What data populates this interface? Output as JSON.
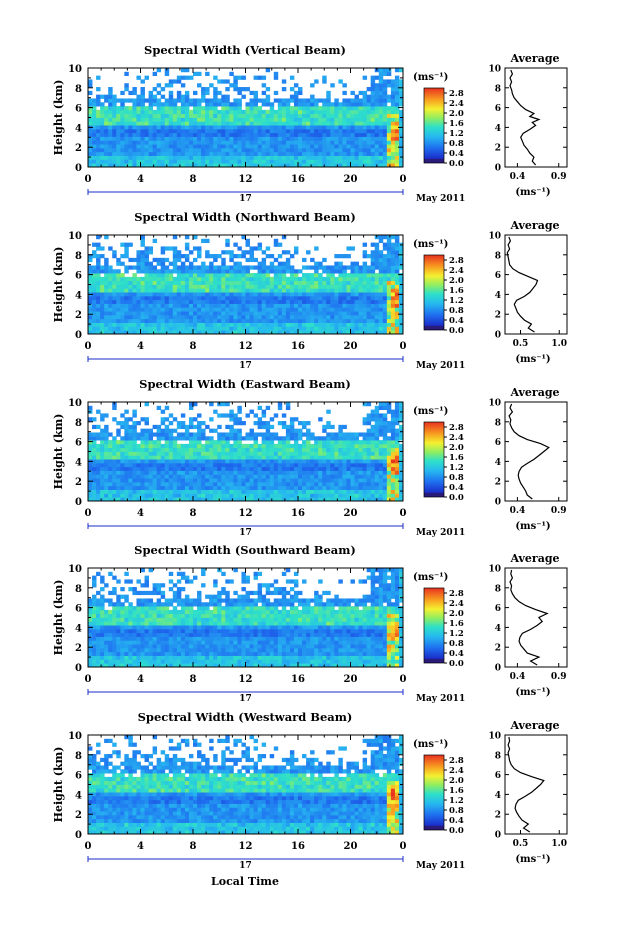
{
  "chart_data": [
    {
      "type": "heatmap",
      "title": "Spectral Width (Vertical Beam)",
      "ylabel": "Height (km)",
      "xlabel": "",
      "x_ticks": [
        "0",
        "4",
        "8",
        "12",
        "16",
        "20",
        "0"
      ],
      "y_ticks": [
        "0",
        "2",
        "4",
        "6",
        "8",
        "10"
      ],
      "xlim": [
        0,
        24
      ],
      "ylim": [
        0,
        10
      ],
      "date_label": "17",
      "month_label": "May 2011",
      "colorbar": {
        "unit": "(ms⁻¹)",
        "ticks": [
          "0.0",
          "0.4",
          "0.8",
          "1.2",
          "1.6",
          "2.0",
          "2.4",
          "2.8"
        ],
        "range": [
          0,
          3.0
        ]
      },
      "average": {
        "title": "Average",
        "xlabel": "(ms⁻¹)",
        "x_ticks": [
          "0.4",
          "0.9"
        ],
        "xlim": [
          0.25,
          1.0
        ],
        "y_ticks": [
          "0",
          "2",
          "4",
          "6",
          "8",
          "10"
        ],
        "profile": [
          [
            0.62,
            0.2
          ],
          [
            0.58,
            0.6
          ],
          [
            0.6,
            1.0
          ],
          [
            0.55,
            1.4
          ],
          [
            0.52,
            1.8
          ],
          [
            0.48,
            2.2
          ],
          [
            0.46,
            2.6
          ],
          [
            0.44,
            3.0
          ],
          [
            0.47,
            3.4
          ],
          [
            0.55,
            3.8
          ],
          [
            0.62,
            4.2
          ],
          [
            0.58,
            4.5
          ],
          [
            0.66,
            4.8
          ],
          [
            0.55,
            5.1
          ],
          [
            0.6,
            5.4
          ],
          [
            0.5,
            5.8
          ],
          [
            0.44,
            6.2
          ],
          [
            0.4,
            6.6
          ],
          [
            0.36,
            7.0
          ],
          [
            0.34,
            7.4
          ],
          [
            0.33,
            7.8
          ],
          [
            0.31,
            8.2
          ],
          [
            0.33,
            8.6
          ],
          [
            0.31,
            9.0
          ],
          [
            0.34,
            9.4
          ],
          [
            0.32,
            9.8
          ]
        ]
      }
    },
    {
      "type": "heatmap",
      "title": "Spectral Width (Northward Beam)",
      "ylabel": "Height (km)",
      "xlabel": "",
      "x_ticks": [
        "0",
        "4",
        "8",
        "12",
        "16",
        "20",
        "0"
      ],
      "y_ticks": [
        "0",
        "2",
        "4",
        "6",
        "8",
        "10"
      ],
      "xlim": [
        0,
        24
      ],
      "ylim": [
        0,
        10
      ],
      "date_label": "17",
      "month_label": "May 2011",
      "colorbar": {
        "unit": "(ms⁻¹)",
        "ticks": [
          "0.0",
          "0.4",
          "0.8",
          "1.2",
          "1.6",
          "2.0",
          "2.4",
          "2.8"
        ],
        "range": [
          0,
          3.0
        ]
      },
      "average": {
        "title": "Average",
        "xlabel": "(ms⁻¹)",
        "x_ticks": [
          "0.5",
          "1.0"
        ],
        "xlim": [
          0.3,
          1.1
        ],
        "y_ticks": [
          "0",
          "2",
          "4",
          "6",
          "8",
          "10"
        ],
        "profile": [
          [
            0.68,
            0.2
          ],
          [
            0.6,
            0.6
          ],
          [
            0.64,
            1.0
          ],
          [
            0.55,
            1.4
          ],
          [
            0.5,
            1.8
          ],
          [
            0.46,
            2.2
          ],
          [
            0.44,
            2.6
          ],
          [
            0.42,
            3.0
          ],
          [
            0.45,
            3.4
          ],
          [
            0.55,
            3.8
          ],
          [
            0.62,
            4.2
          ],
          [
            0.66,
            4.6
          ],
          [
            0.7,
            5.0
          ],
          [
            0.72,
            5.4
          ],
          [
            0.6,
            5.8
          ],
          [
            0.48,
            6.2
          ],
          [
            0.4,
            6.6
          ],
          [
            0.36,
            7.0
          ],
          [
            0.35,
            7.4
          ],
          [
            0.34,
            7.8
          ],
          [
            0.33,
            8.2
          ],
          [
            0.36,
            8.6
          ],
          [
            0.34,
            9.0
          ],
          [
            0.37,
            9.4
          ],
          [
            0.35,
            9.8
          ]
        ]
      }
    },
    {
      "type": "heatmap",
      "title": "Spectral Width (Eastward Beam)",
      "ylabel": "Height (km)",
      "xlabel": "",
      "x_ticks": [
        "0",
        "4",
        "8",
        "12",
        "16",
        "20",
        "0"
      ],
      "y_ticks": [
        "0",
        "2",
        "4",
        "6",
        "8",
        "10"
      ],
      "xlim": [
        0,
        24
      ],
      "ylim": [
        0,
        10
      ],
      "date_label": "17",
      "month_label": "May 2011",
      "colorbar": {
        "unit": "(ms⁻¹)",
        "ticks": [
          "0.0",
          "0.4",
          "0.8",
          "1.2",
          "1.6",
          "2.0",
          "2.4",
          "2.8"
        ],
        "range": [
          0,
          3.0
        ]
      },
      "average": {
        "title": "Average",
        "xlabel": "(ms⁻¹)",
        "x_ticks": [
          "0.4",
          "0.9"
        ],
        "xlim": [
          0.25,
          1.0
        ],
        "y_ticks": [
          "0",
          "2",
          "4",
          "6",
          "8",
          "10"
        ],
        "profile": [
          [
            0.58,
            0.2
          ],
          [
            0.52,
            0.6
          ],
          [
            0.5,
            1.0
          ],
          [
            0.47,
            1.4
          ],
          [
            0.44,
            1.8
          ],
          [
            0.42,
            2.2
          ],
          [
            0.41,
            2.6
          ],
          [
            0.42,
            3.0
          ],
          [
            0.45,
            3.4
          ],
          [
            0.52,
            3.8
          ],
          [
            0.6,
            4.2
          ],
          [
            0.66,
            4.6
          ],
          [
            0.72,
            5.0
          ],
          [
            0.78,
            5.4
          ],
          [
            0.68,
            5.8
          ],
          [
            0.52,
            6.2
          ],
          [
            0.42,
            6.6
          ],
          [
            0.36,
            7.0
          ],
          [
            0.33,
            7.4
          ],
          [
            0.31,
            7.8
          ],
          [
            0.32,
            8.2
          ],
          [
            0.3,
            8.6
          ],
          [
            0.34,
            9.0
          ],
          [
            0.31,
            9.4
          ],
          [
            0.33,
            9.8
          ]
        ]
      }
    },
    {
      "type": "heatmap",
      "title": "Spectral Width (Southward Beam)",
      "ylabel": "Height (km)",
      "xlabel": "",
      "x_ticks": [
        "0",
        "4",
        "8",
        "12",
        "16",
        "20",
        "0"
      ],
      "y_ticks": [
        "0",
        "2",
        "4",
        "6",
        "8",
        "10"
      ],
      "xlim": [
        0,
        24
      ],
      "ylim": [
        0,
        10
      ],
      "date_label": "17",
      "month_label": "May 2011",
      "colorbar": {
        "unit": "(ms⁻¹)",
        "ticks": [
          "0.0",
          "0.4",
          "0.8",
          "1.2",
          "1.6",
          "2.0",
          "2.4",
          "2.8"
        ],
        "range": [
          0,
          3.0
        ]
      },
      "average": {
        "title": "Average",
        "xlabel": "(ms⁻¹)",
        "x_ticks": [
          "0.4",
          "0.9"
        ],
        "xlim": [
          0.25,
          1.0
        ],
        "y_ticks": [
          "0",
          "2",
          "4",
          "6",
          "8",
          "10"
        ],
        "profile": [
          [
            0.64,
            0.2
          ],
          [
            0.56,
            0.6
          ],
          [
            0.66,
            1.0
          ],
          [
            0.52,
            1.4
          ],
          [
            0.48,
            1.8
          ],
          [
            0.44,
            2.2
          ],
          [
            0.42,
            2.6
          ],
          [
            0.43,
            3.0
          ],
          [
            0.46,
            3.4
          ],
          [
            0.56,
            3.8
          ],
          [
            0.64,
            4.2
          ],
          [
            0.7,
            4.6
          ],
          [
            0.66,
            5.0
          ],
          [
            0.76,
            5.4
          ],
          [
            0.62,
            5.8
          ],
          [
            0.5,
            6.2
          ],
          [
            0.42,
            6.6
          ],
          [
            0.37,
            7.0
          ],
          [
            0.34,
            7.4
          ],
          [
            0.32,
            7.8
          ],
          [
            0.33,
            8.2
          ],
          [
            0.31,
            8.6
          ],
          [
            0.34,
            9.0
          ],
          [
            0.32,
            9.4
          ],
          [
            0.33,
            9.8
          ]
        ]
      }
    },
    {
      "type": "heatmap",
      "title": "Spectral Width (Westward Beam)",
      "ylabel": "Height (km)",
      "xlabel": "Local Time",
      "x_ticks": [
        "0",
        "4",
        "8",
        "12",
        "16",
        "20",
        "0"
      ],
      "y_ticks": [
        "0",
        "2",
        "4",
        "6",
        "8",
        "10"
      ],
      "xlim": [
        0,
        24
      ],
      "ylim": [
        0,
        10
      ],
      "date_label": "17",
      "month_label": "May 2011",
      "colorbar": {
        "unit": "(ms⁻¹)",
        "ticks": [
          "0.0",
          "0.4",
          "0.8",
          "1.2",
          "1.6",
          "2.0",
          "2.4",
          "2.8"
        ],
        "range": [
          0,
          3.0
        ]
      },
      "average": {
        "title": "Average",
        "xlabel": "(ms⁻¹)",
        "x_ticks": [
          "0.5",
          "1.0"
        ],
        "xlim": [
          0.3,
          1.1
        ],
        "y_ticks": [
          "0",
          "2",
          "4",
          "6",
          "8",
          "10"
        ],
        "profile": [
          [
            0.62,
            0.2
          ],
          [
            0.54,
            0.6
          ],
          [
            0.6,
            1.0
          ],
          [
            0.52,
            1.4
          ],
          [
            0.48,
            1.8
          ],
          [
            0.45,
            2.2
          ],
          [
            0.43,
            2.6
          ],
          [
            0.44,
            3.0
          ],
          [
            0.47,
            3.4
          ],
          [
            0.56,
            3.8
          ],
          [
            0.64,
            4.2
          ],
          [
            0.7,
            4.6
          ],
          [
            0.76,
            5.0
          ],
          [
            0.8,
            5.4
          ],
          [
            0.64,
            5.8
          ],
          [
            0.5,
            6.2
          ],
          [
            0.42,
            6.6
          ],
          [
            0.38,
            7.0
          ],
          [
            0.36,
            7.4
          ],
          [
            0.35,
            7.8
          ],
          [
            0.34,
            8.2
          ],
          [
            0.36,
            8.6
          ],
          [
            0.34,
            9.0
          ],
          [
            0.36,
            9.4
          ],
          [
            0.35,
            9.8
          ]
        ]
      }
    }
  ]
}
